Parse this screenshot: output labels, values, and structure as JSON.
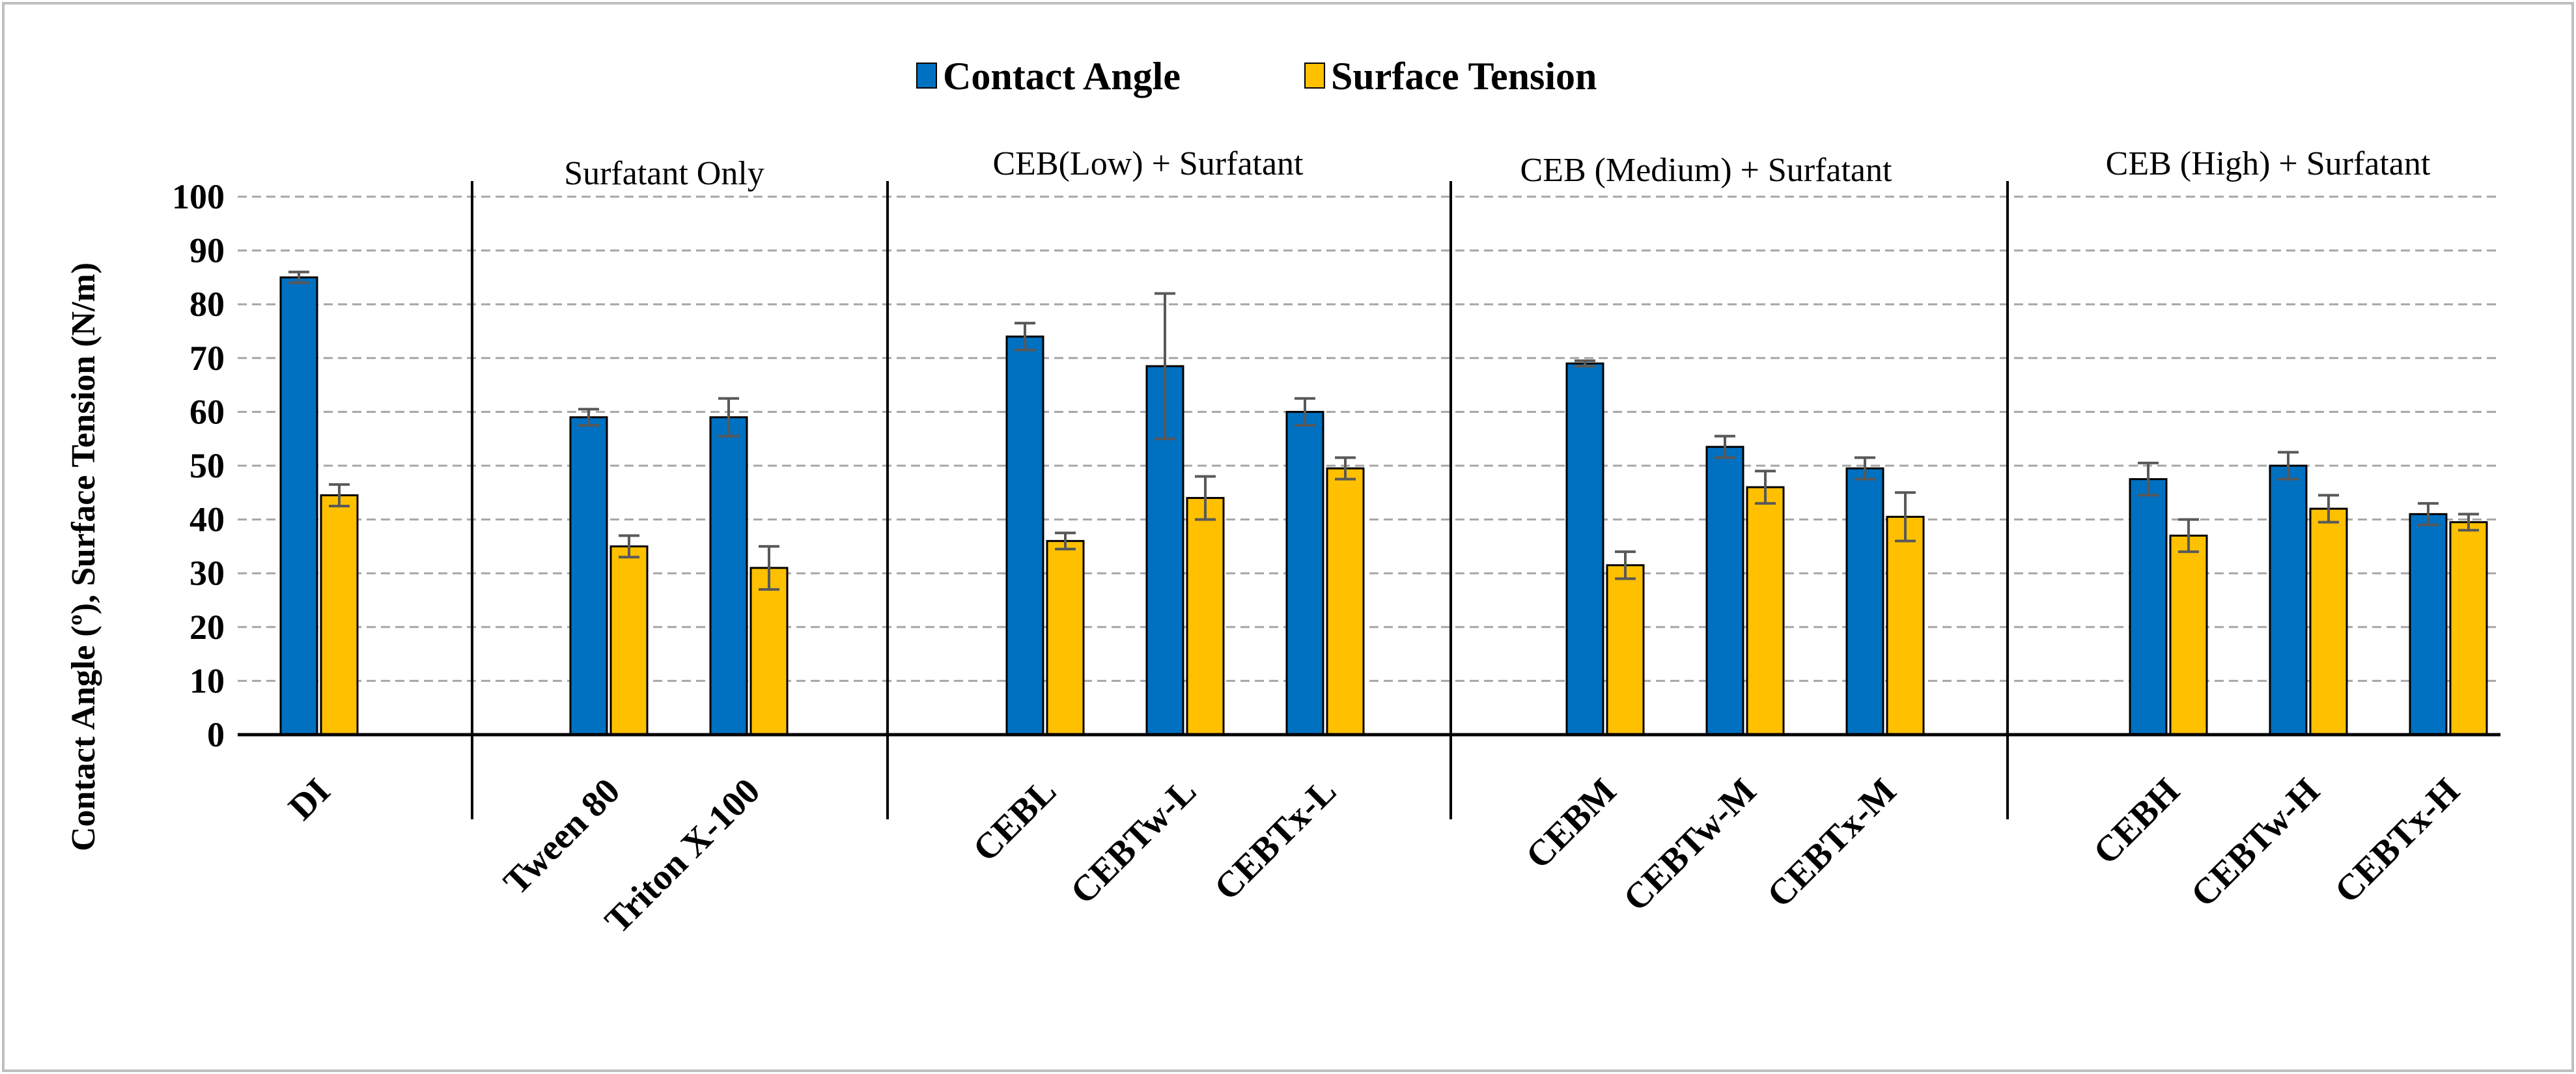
{
  "chart_data": {
    "type": "bar",
    "title": "",
    "xlabel": "",
    "ylabel": "Contact Angle (º), Surface Tension (N/m)",
    "ylim": [
      0,
      100
    ],
    "yticks": [
      0,
      10,
      20,
      30,
      40,
      50,
      60,
      70,
      80,
      90,
      100
    ],
    "grid": true,
    "legend_position": "top-center",
    "categories": [
      "DI",
      "Tween 80",
      "Triton X-100",
      "CEBL",
      "CEBTw-L",
      "CEBTx-L",
      "CEBM",
      "CEBTw-M",
      "CEBTx-M",
      "CEBH",
      "CEBTw-H",
      "CEBTx-H"
    ],
    "groups": [
      {
        "label": "",
        "categories": [
          "DI"
        ]
      },
      {
        "label": "Surfatant Only",
        "categories": [
          "Tween 80",
          "Triton X-100"
        ]
      },
      {
        "label": "CEB(Low) + Surfatant",
        "categories": [
          "CEBL",
          "CEBTw-L",
          "CEBTx-L"
        ]
      },
      {
        "label": "CEB  (Medium) + Surfatant",
        "categories": [
          "CEBM",
          "CEBTw-M",
          "CEBTx-M"
        ]
      },
      {
        "label": "CEB  (High) + Surfatant",
        "categories": [
          "CEBH",
          "CEBTw-H",
          "CEBTx-H"
        ]
      }
    ],
    "series": [
      {
        "name": "Contact Angle",
        "color": "#0070C0",
        "values": [
          85,
          59,
          59,
          74,
          68.5,
          60,
          69,
          53.5,
          49.5,
          47.5,
          50,
          41
        ],
        "errors": [
          1,
          1.5,
          3.5,
          2.5,
          13.5,
          2.5,
          0.5,
          2,
          2,
          3,
          2.5,
          2
        ]
      },
      {
        "name": "Surface Tension",
        "color": "#FFC000",
        "values": [
          44.5,
          35,
          31,
          36,
          44,
          49.5,
          31.5,
          46,
          40.5,
          37,
          42,
          39.5
        ],
        "errors": [
          2,
          2,
          4,
          1.5,
          4,
          2,
          2.5,
          3,
          4.5,
          3,
          2.5,
          1.5
        ]
      }
    ]
  }
}
